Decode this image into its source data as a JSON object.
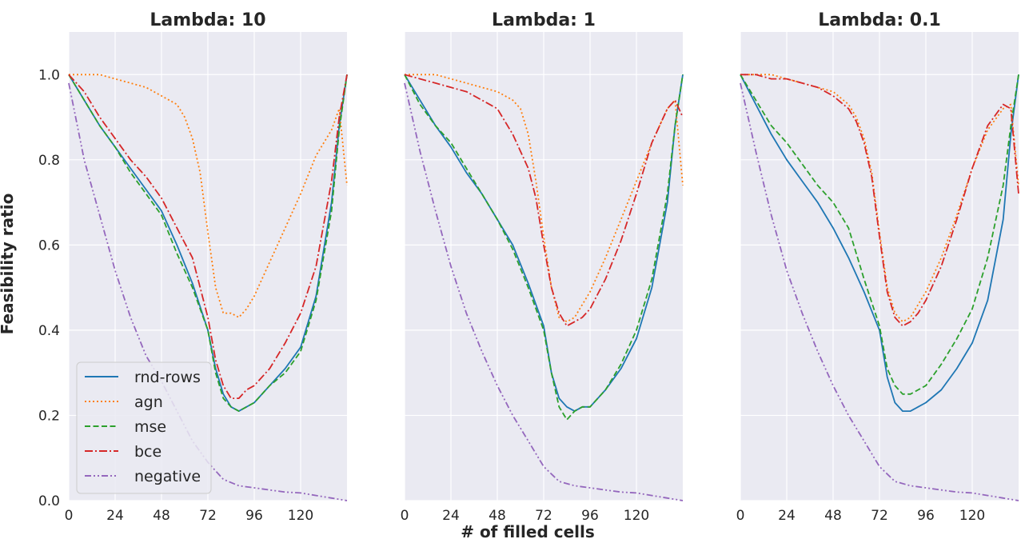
{
  "chart_data": {
    "type": "line",
    "xlabel": "# of filled cells",
    "ylabel": "Feasibility ratio",
    "xlim": [
      0,
      144
    ],
    "ylim": [
      0,
      1.1
    ],
    "xticks": [
      0,
      24,
      48,
      72,
      96,
      120
    ],
    "yticks": [
      0.0,
      0.2,
      0.4,
      0.6,
      0.8,
      1.0
    ],
    "xtick_labels": [
      "0",
      "24",
      "48",
      "72",
      "96",
      "120"
    ],
    "ytick_labels": [
      "0.0",
      "0.2",
      "0.4",
      "0.6",
      "0.8",
      "1.0"
    ],
    "grid": true,
    "legend_position": "lower-left",
    "legend": [
      "rnd-rows",
      "agn",
      "mse",
      "bce",
      "negative"
    ],
    "styles": {
      "rnd-rows": {
        "color": "#1f77b4",
        "dash": "solid"
      },
      "agn": {
        "color": "#ff7f0e",
        "dash": "dotted"
      },
      "mse": {
        "color": "#2ca02c",
        "dash": "dashed"
      },
      "bce": {
        "color": "#d62728",
        "dash": "dashdot"
      },
      "negative": {
        "color": "#9467bd",
        "dash": "dashdotdot"
      }
    },
    "panels": [
      {
        "title": "Lambda: 10",
        "series": [
          {
            "name": "rnd-rows",
            "x": [
              0,
              8,
              16,
              24,
              32,
              40,
              48,
              56,
              64,
              72,
              76,
              80,
              84,
              88,
              92,
              96,
              104,
              112,
              120,
              128,
              136,
              140,
              144
            ],
            "y": [
              1.0,
              0.94,
              0.88,
              0.83,
              0.78,
              0.73,
              0.68,
              0.6,
              0.51,
              0.4,
              0.31,
              0.25,
              0.22,
              0.21,
              0.22,
              0.23,
              0.27,
              0.31,
              0.36,
              0.48,
              0.7,
              0.88,
              1.0
            ]
          },
          {
            "name": "agn",
            "x": [
              0,
              8,
              16,
              24,
              32,
              40,
              48,
              56,
              60,
              64,
              68,
              72,
              76,
              80,
              84,
              88,
              92,
              96,
              104,
              112,
              120,
              128,
              136,
              140,
              144
            ],
            "y": [
              1.0,
              1.0,
              1.0,
              0.99,
              0.98,
              0.97,
              0.95,
              0.93,
              0.9,
              0.85,
              0.77,
              0.63,
              0.5,
              0.44,
              0.44,
              0.43,
              0.45,
              0.48,
              0.56,
              0.64,
              0.72,
              0.81,
              0.87,
              0.92,
              0.74
            ]
          },
          {
            "name": "mse",
            "x": [
              0,
              8,
              16,
              24,
              32,
              40,
              48,
              56,
              64,
              72,
              76,
              80,
              84,
              88,
              92,
              96,
              104,
              112,
              120,
              128,
              136,
              140,
              144
            ],
            "y": [
              1.0,
              0.94,
              0.88,
              0.83,
              0.77,
              0.72,
              0.67,
              0.58,
              0.5,
              0.4,
              0.3,
              0.24,
              0.22,
              0.21,
              0.22,
              0.23,
              0.27,
              0.3,
              0.35,
              0.47,
              0.68,
              0.87,
              1.0
            ]
          },
          {
            "name": "bce",
            "x": [
              0,
              8,
              16,
              24,
              32,
              40,
              48,
              56,
              64,
              72,
              76,
              80,
              84,
              88,
              92,
              96,
              104,
              112,
              120,
              128,
              136,
              140,
              144
            ],
            "y": [
              1.0,
              0.96,
              0.9,
              0.85,
              0.8,
              0.76,
              0.71,
              0.64,
              0.57,
              0.43,
              0.33,
              0.27,
              0.24,
              0.24,
              0.26,
              0.27,
              0.31,
              0.37,
              0.44,
              0.55,
              0.75,
              0.9,
              1.0
            ]
          },
          {
            "name": "negative",
            "x": [
              0,
              8,
              16,
              24,
              32,
              40,
              48,
              56,
              64,
              72,
              80,
              88,
              96,
              104,
              112,
              120,
              128,
              136,
              144
            ],
            "y": [
              0.98,
              0.8,
              0.67,
              0.54,
              0.43,
              0.34,
              0.28,
              0.21,
              0.14,
              0.09,
              0.05,
              0.035,
              0.03,
              0.025,
              0.02,
              0.018,
              0.012,
              0.006,
              0.0
            ]
          }
        ]
      },
      {
        "title": "Lambda: 1",
        "series": [
          {
            "name": "rnd-rows",
            "x": [
              0,
              8,
              16,
              24,
              32,
              40,
              48,
              56,
              64,
              72,
              76,
              80,
              84,
              88,
              92,
              96,
              104,
              112,
              120,
              128,
              136,
              140,
              144
            ],
            "y": [
              1.0,
              0.94,
              0.88,
              0.83,
              0.77,
              0.72,
              0.66,
              0.6,
              0.51,
              0.41,
              0.3,
              0.24,
              0.22,
              0.21,
              0.22,
              0.22,
              0.26,
              0.31,
              0.38,
              0.5,
              0.7,
              0.88,
              1.0
            ]
          },
          {
            "name": "agn",
            "x": [
              0,
              8,
              16,
              24,
              32,
              40,
              48,
              56,
              60,
              64,
              68,
              72,
              76,
              80,
              84,
              88,
              92,
              96,
              104,
              112,
              120,
              128,
              136,
              140,
              144
            ],
            "y": [
              1.0,
              1.0,
              1.0,
              0.99,
              0.98,
              0.97,
              0.96,
              0.94,
              0.92,
              0.86,
              0.75,
              0.62,
              0.5,
              0.43,
              0.42,
              0.43,
              0.46,
              0.49,
              0.57,
              0.66,
              0.75,
              0.84,
              0.92,
              0.94,
              0.74
            ]
          },
          {
            "name": "mse",
            "x": [
              0,
              8,
              16,
              24,
              32,
              40,
              48,
              56,
              64,
              72,
              76,
              80,
              84,
              88,
              92,
              96,
              104,
              112,
              120,
              128,
              136,
              140,
              144
            ],
            "y": [
              1.0,
              0.93,
              0.88,
              0.84,
              0.78,
              0.72,
              0.66,
              0.59,
              0.5,
              0.4,
              0.3,
              0.22,
              0.19,
              0.21,
              0.22,
              0.22,
              0.26,
              0.32,
              0.4,
              0.52,
              0.72,
              0.88,
              1.0
            ]
          },
          {
            "name": "bce",
            "x": [
              0,
              8,
              16,
              24,
              32,
              40,
              48,
              56,
              60,
              64,
              68,
              72,
              76,
              80,
              84,
              88,
              92,
              96,
              104,
              112,
              120,
              128,
              136,
              140,
              144
            ],
            "y": [
              1.0,
              0.99,
              0.98,
              0.97,
              0.96,
              0.94,
              0.92,
              0.86,
              0.82,
              0.78,
              0.71,
              0.6,
              0.5,
              0.44,
              0.41,
              0.42,
              0.43,
              0.45,
              0.52,
              0.61,
              0.72,
              0.84,
              0.92,
              0.94,
              0.9
            ]
          },
          {
            "name": "negative",
            "x": [
              0,
              8,
              16,
              24,
              32,
              40,
              48,
              56,
              64,
              72,
              80,
              88,
              96,
              104,
              112,
              120,
              128,
              136,
              144
            ],
            "y": [
              0.98,
              0.82,
              0.68,
              0.55,
              0.44,
              0.35,
              0.27,
              0.2,
              0.14,
              0.08,
              0.045,
              0.035,
              0.03,
              0.025,
              0.02,
              0.018,
              0.012,
              0.006,
              0.0
            ]
          }
        ]
      },
      {
        "title": "Lambda: 0.1",
        "series": [
          {
            "name": "rnd-rows",
            "x": [
              0,
              8,
              16,
              24,
              32,
              40,
              48,
              56,
              64,
              72,
              76,
              80,
              84,
              88,
              92,
              96,
              104,
              112,
              120,
              128,
              136,
              140,
              144
            ],
            "y": [
              1.0,
              0.93,
              0.86,
              0.8,
              0.75,
              0.7,
              0.64,
              0.57,
              0.49,
              0.4,
              0.29,
              0.23,
              0.21,
              0.21,
              0.22,
              0.23,
              0.26,
              0.31,
              0.37,
              0.47,
              0.66,
              0.86,
              1.0
            ]
          },
          {
            "name": "agn",
            "x": [
              0,
              8,
              16,
              24,
              32,
              40,
              48,
              56,
              60,
              64,
              68,
              72,
              76,
              80,
              84,
              88,
              92,
              96,
              104,
              112,
              120,
              128,
              136,
              140,
              144
            ],
            "y": [
              1.0,
              1.0,
              1.0,
              0.99,
              0.98,
              0.97,
              0.96,
              0.93,
              0.9,
              0.85,
              0.77,
              0.63,
              0.5,
              0.44,
              0.42,
              0.43,
              0.46,
              0.49,
              0.57,
              0.67,
              0.78,
              0.87,
              0.92,
              0.93,
              0.74
            ]
          },
          {
            "name": "mse",
            "x": [
              0,
              8,
              16,
              24,
              32,
              40,
              48,
              56,
              64,
              72,
              76,
              80,
              84,
              88,
              92,
              96,
              104,
              112,
              120,
              128,
              136,
              140,
              144
            ],
            "y": [
              1.0,
              0.94,
              0.88,
              0.84,
              0.79,
              0.74,
              0.7,
              0.64,
              0.52,
              0.41,
              0.31,
              0.27,
              0.25,
              0.25,
              0.26,
              0.27,
              0.32,
              0.38,
              0.45,
              0.57,
              0.74,
              0.88,
              1.0
            ]
          },
          {
            "name": "bce",
            "x": [
              0,
              8,
              16,
              24,
              32,
              40,
              48,
              56,
              60,
              64,
              68,
              72,
              76,
              80,
              84,
              88,
              92,
              96,
              104,
              112,
              120,
              128,
              136,
              140,
              144
            ],
            "y": [
              1.0,
              1.0,
              0.99,
              0.99,
              0.98,
              0.97,
              0.95,
              0.92,
              0.89,
              0.84,
              0.76,
              0.62,
              0.49,
              0.43,
              0.41,
              0.42,
              0.44,
              0.47,
              0.55,
              0.66,
              0.78,
              0.88,
              0.93,
              0.92,
              0.72
            ]
          },
          {
            "name": "negative",
            "x": [
              0,
              8,
              16,
              24,
              32,
              40,
              48,
              56,
              64,
              72,
              80,
              88,
              96,
              104,
              112,
              120,
              128,
              136,
              144
            ],
            "y": [
              0.98,
              0.82,
              0.67,
              0.54,
              0.44,
              0.35,
              0.27,
              0.2,
              0.14,
              0.08,
              0.045,
              0.035,
              0.03,
              0.025,
              0.02,
              0.018,
              0.012,
              0.006,
              0.0
            ]
          }
        ]
      }
    ]
  }
}
